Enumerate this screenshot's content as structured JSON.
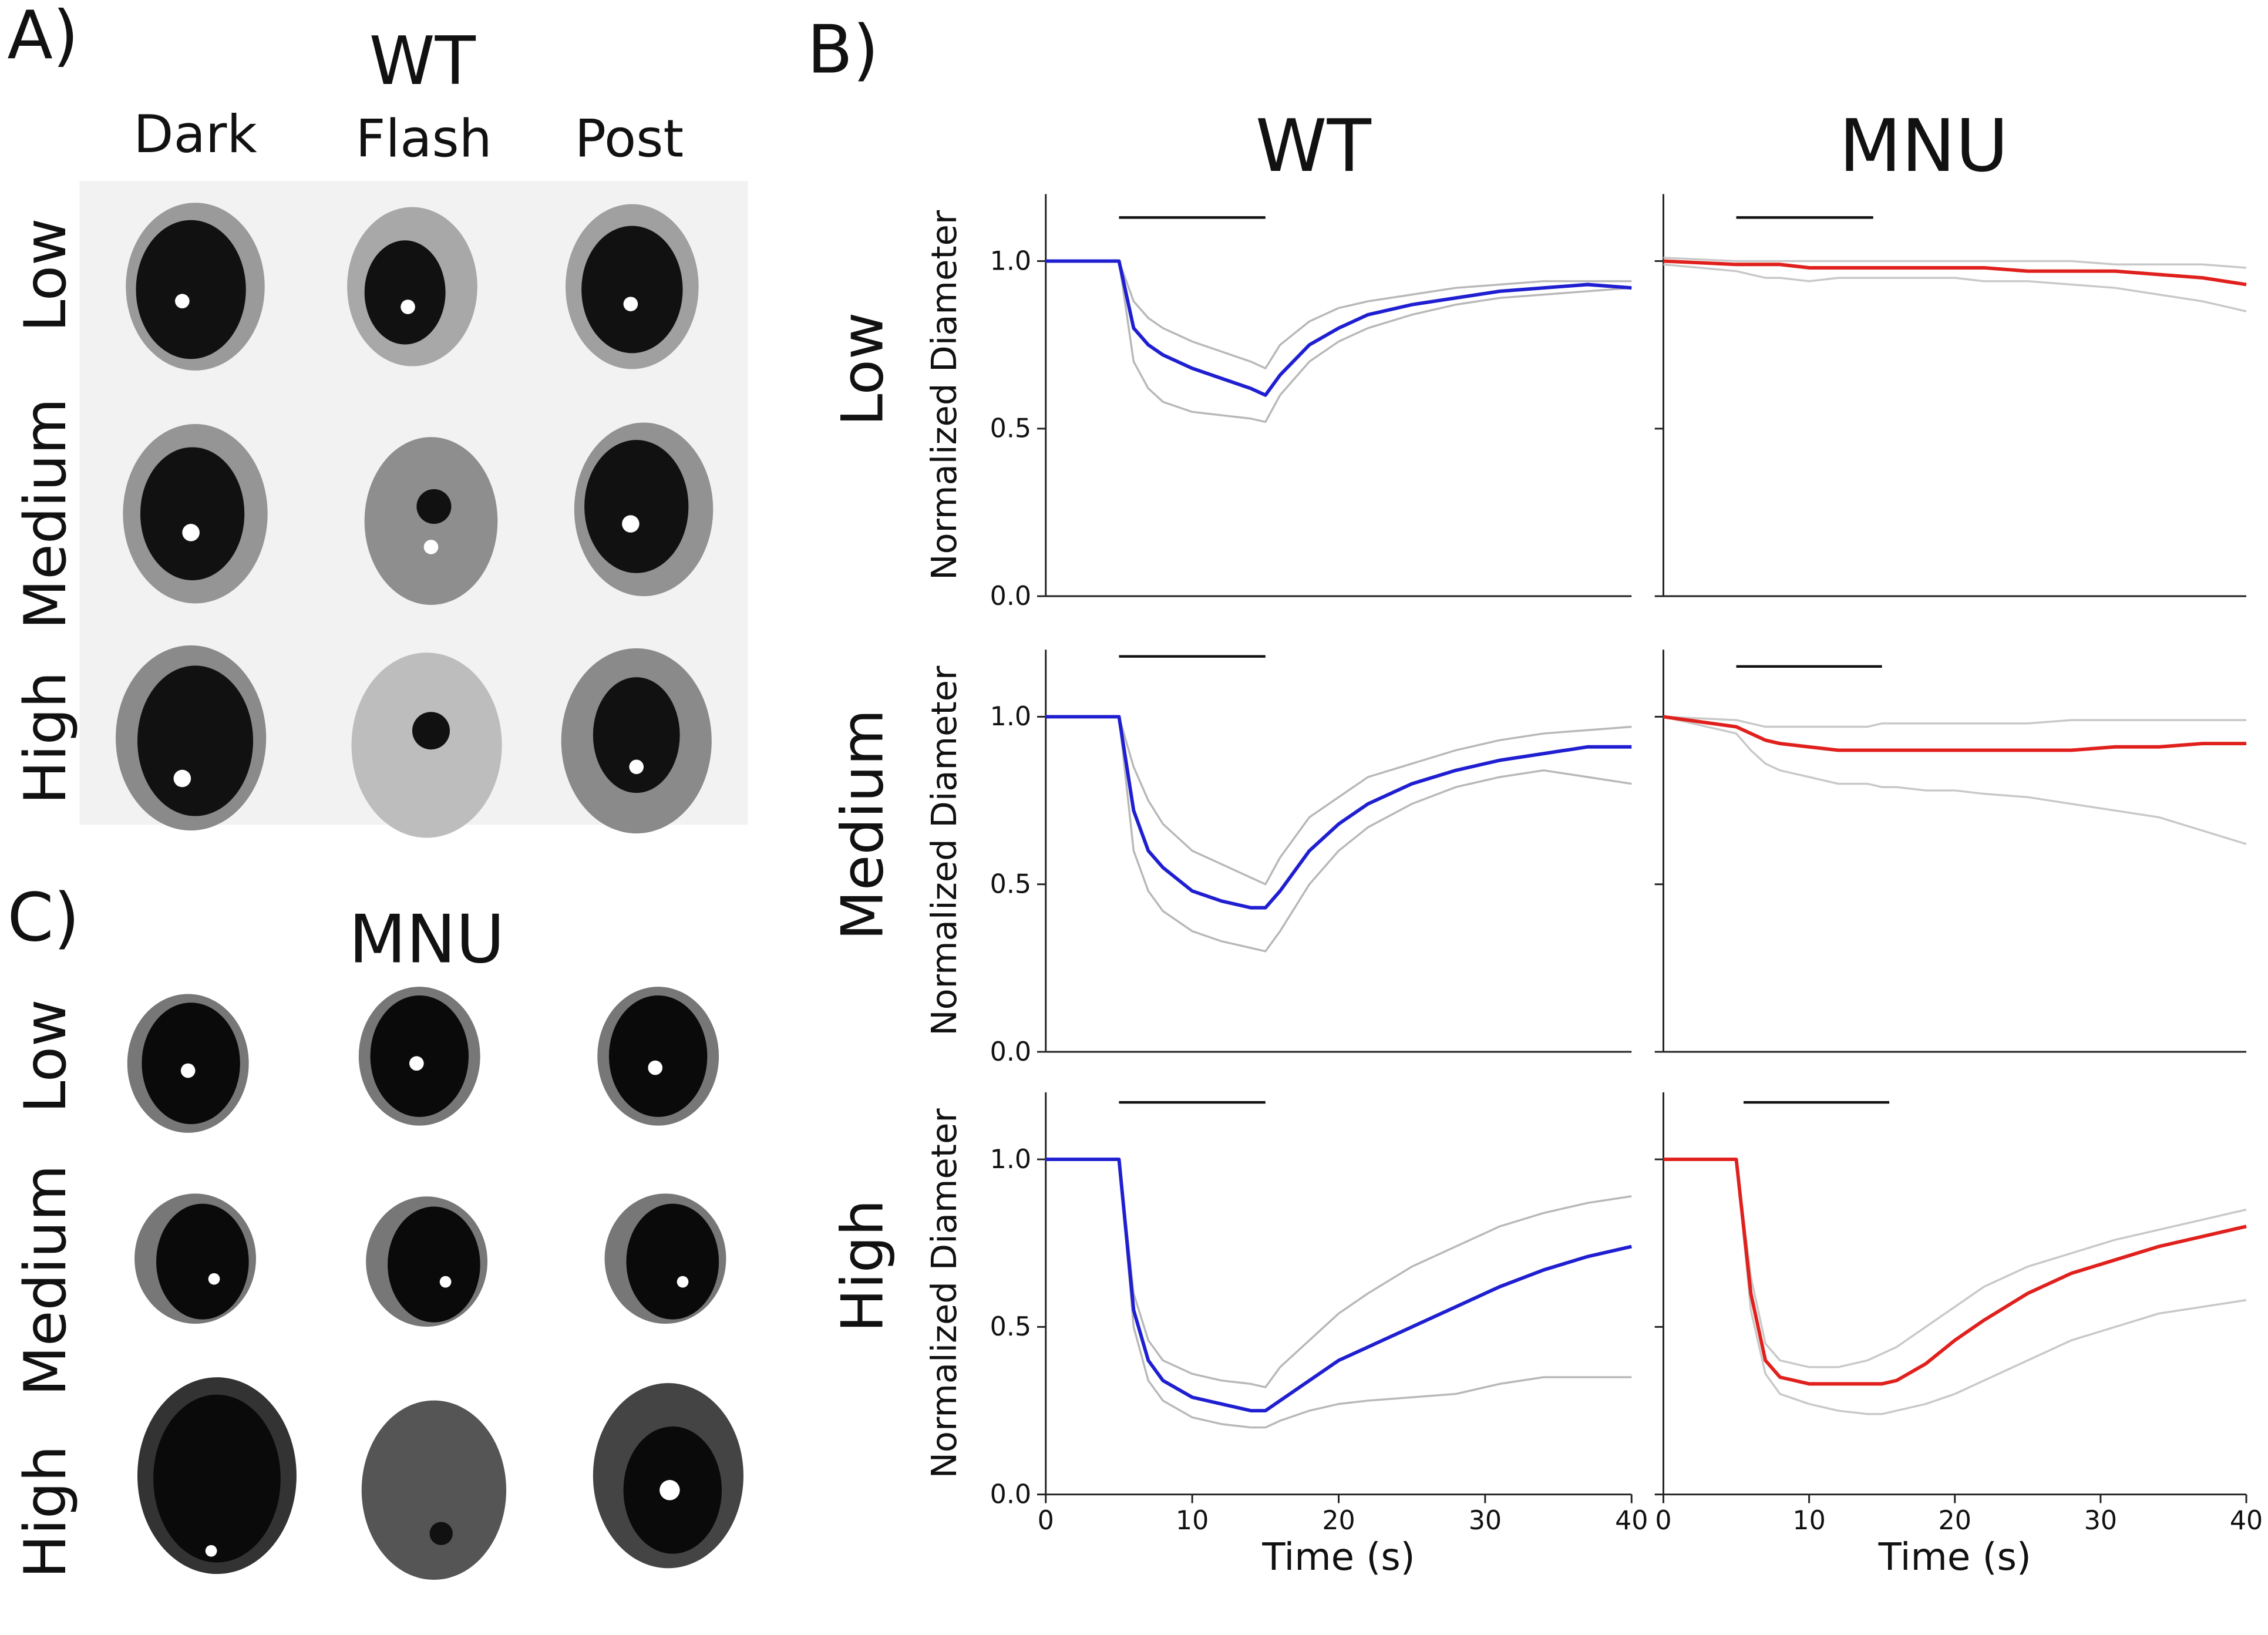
{
  "panel_a": {
    "label": "A)",
    "title": "WT",
    "columns": [
      "Dark",
      "Flash",
      "Post"
    ],
    "rows": [
      "Low",
      "Medium",
      "High"
    ]
  },
  "panel_c": {
    "label": "C)",
    "title": "MNU",
    "rows": [
      "Low",
      "Medium",
      "High"
    ]
  },
  "panel_b": {
    "label": "B)",
    "column_titles": [
      "WT",
      "MNU"
    ],
    "row_labels": [
      "Low",
      "Medium",
      "High"
    ]
  },
  "chart_data": [
    {
      "type": "line",
      "ylabel": "Normalized Diameter",
      "show_ytick_labels": true,
      "x": [
        0,
        5,
        6,
        7,
        8,
        10,
        12,
        14,
        15,
        16,
        18,
        20,
        22,
        25,
        28,
        31,
        34,
        37,
        40
      ],
      "xlim": [
        0,
        40
      ],
      "ylim": [
        0,
        1.2
      ],
      "yticks": [
        {
          "value": 0,
          "label": "0.0"
        },
        {
          "value": 0.5,
          "label": "0.5"
        },
        {
          "value": 1,
          "label": "1.0"
        }
      ],
      "stimulus": {
        "start": 5,
        "end": 15,
        "level": 1.13
      },
      "series": [
        {
          "color": "#b8b8b8",
          "values": [
            1.0,
            1.0,
            0.7,
            0.62,
            0.58,
            0.55,
            0.54,
            0.53,
            0.52,
            0.6,
            0.7,
            0.76,
            0.8,
            0.84,
            0.87,
            0.89,
            0.9,
            0.91,
            0.92
          ]
        },
        {
          "color": "#b8b8b8",
          "values": [
            1.0,
            1.0,
            0.88,
            0.83,
            0.8,
            0.76,
            0.73,
            0.7,
            0.68,
            0.75,
            0.82,
            0.86,
            0.88,
            0.9,
            0.92,
            0.93,
            0.94,
            0.94,
            0.94
          ]
        },
        {
          "color": "#1f1fd1",
          "values": [
            1.0,
            1.0,
            0.8,
            0.75,
            0.72,
            0.68,
            0.65,
            0.62,
            0.6,
            0.66,
            0.75,
            0.8,
            0.84,
            0.87,
            0.89,
            0.91,
            0.92,
            0.93,
            0.92
          ]
        }
      ]
    },
    {
      "type": "line",
      "show_ytick_labels": false,
      "x": [
        0,
        5,
        6,
        7,
        8,
        10,
        12,
        14,
        15,
        16,
        18,
        20,
        22,
        25,
        28,
        31,
        34,
        37,
        40
      ],
      "xlim": [
        0,
        40
      ],
      "ylim": [
        0,
        1.2
      ],
      "yticks": [
        0,
        0.5,
        1
      ],
      "stimulus": {
        "start": 5,
        "end": 14.4,
        "level": 1.13
      },
      "series": [
        {
          "color": "#c8c8c8",
          "values": [
            1.01,
            1.0,
            1.0,
            1.0,
            1.0,
            1.0,
            1.0,
            1.0,
            1.0,
            1.0,
            1.0,
            1.0,
            1.0,
            1.0,
            1.0,
            0.99,
            0.99,
            0.99,
            0.98
          ]
        },
        {
          "color": "#c8c8c8",
          "values": [
            0.99,
            0.97,
            0.96,
            0.95,
            0.95,
            0.94,
            0.95,
            0.95,
            0.95,
            0.95,
            0.95,
            0.95,
            0.94,
            0.94,
            0.93,
            0.92,
            0.9,
            0.88,
            0.85
          ]
        },
        {
          "color": "#e0201c",
          "values": [
            1.0,
            0.99,
            0.99,
            0.99,
            0.99,
            0.98,
            0.98,
            0.98,
            0.98,
            0.98,
            0.98,
            0.98,
            0.98,
            0.97,
            0.97,
            0.97,
            0.96,
            0.95,
            0.93
          ]
        }
      ]
    },
    {
      "type": "line",
      "ylabel": "Normalized Diameter",
      "show_ytick_labels": true,
      "x": [
        0,
        5,
        6,
        7,
        8,
        10,
        12,
        14,
        15,
        16,
        18,
        20,
        22,
        25,
        28,
        31,
        34,
        37,
        40
      ],
      "xlim": [
        0,
        40
      ],
      "ylim": [
        0,
        1.2
      ],
      "yticks": [
        {
          "value": 0,
          "label": "0.0"
        },
        {
          "value": 0.5,
          "label": "0.5"
        },
        {
          "value": 1,
          "label": "1.0"
        }
      ],
      "stimulus": {
        "start": 5,
        "end": 15,
        "level": 1.18
      },
      "series": [
        {
          "color": "#b8b8b8",
          "values": [
            1.0,
            1.0,
            0.6,
            0.48,
            0.42,
            0.36,
            0.33,
            0.31,
            0.3,
            0.36,
            0.5,
            0.6,
            0.67,
            0.74,
            0.79,
            0.82,
            0.84,
            0.82,
            0.8
          ]
        },
        {
          "color": "#b8b8b8",
          "values": [
            1.0,
            1.0,
            0.85,
            0.75,
            0.68,
            0.6,
            0.56,
            0.52,
            0.5,
            0.58,
            0.7,
            0.76,
            0.82,
            0.86,
            0.9,
            0.93,
            0.95,
            0.96,
            0.97
          ]
        },
        {
          "color": "#1f1fd1",
          "values": [
            1.0,
            1.0,
            0.72,
            0.6,
            0.55,
            0.48,
            0.45,
            0.43,
            0.43,
            0.48,
            0.6,
            0.68,
            0.74,
            0.8,
            0.84,
            0.87,
            0.89,
            0.91,
            0.91
          ]
        }
      ]
    },
    {
      "type": "line",
      "show_ytick_labels": false,
      "x": [
        0,
        5,
        6,
        7,
        8,
        10,
        12,
        14,
        15,
        16,
        18,
        20,
        22,
        25,
        28,
        31,
        34,
        37,
        40
      ],
      "xlim": [
        0,
        40
      ],
      "ylim": [
        0,
        1.2
      ],
      "yticks": [
        0,
        0.5,
        1
      ],
      "stimulus": {
        "start": 5,
        "end": 15,
        "level": 1.15
      },
      "series": [
        {
          "color": "#c8c8c8",
          "values": [
            1.0,
            0.99,
            0.98,
            0.97,
            0.97,
            0.97,
            0.97,
            0.97,
            0.98,
            0.98,
            0.98,
            0.98,
            0.98,
            0.98,
            0.99,
            0.99,
            0.99,
            0.99,
            0.99
          ]
        },
        {
          "color": "#c8c8c8",
          "values": [
            1.0,
            0.95,
            0.9,
            0.86,
            0.84,
            0.82,
            0.8,
            0.8,
            0.79,
            0.79,
            0.78,
            0.78,
            0.77,
            0.76,
            0.74,
            0.72,
            0.7,
            0.66,
            0.62
          ]
        },
        {
          "color": "#e0201c",
          "values": [
            1.0,
            0.97,
            0.95,
            0.93,
            0.92,
            0.91,
            0.9,
            0.9,
            0.9,
            0.9,
            0.9,
            0.9,
            0.9,
            0.9,
            0.9,
            0.91,
            0.91,
            0.92,
            0.92
          ]
        }
      ]
    },
    {
      "type": "line",
      "ylabel": "Normalized Diameter",
      "xlabel": "Time (s)",
      "show_ytick_labels": true,
      "x": [
        0,
        5,
        6,
        7,
        8,
        10,
        12,
        14,
        15,
        16,
        18,
        20,
        22,
        25,
        28,
        31,
        34,
        37,
        40
      ],
      "xlim": [
        0,
        40
      ],
      "xticks": [
        0,
        10,
        20,
        30,
        40
      ],
      "ylim": [
        0,
        1.2
      ],
      "yticks": [
        {
          "value": 0,
          "label": "0.0"
        },
        {
          "value": 0.5,
          "label": "0.5"
        },
        {
          "value": 1,
          "label": "1.0"
        }
      ],
      "stimulus": {
        "start": 5,
        "end": 15,
        "level": 1.17
      },
      "series": [
        {
          "color": "#b8b8b8",
          "values": [
            1.0,
            1.0,
            0.5,
            0.34,
            0.28,
            0.23,
            0.21,
            0.2,
            0.2,
            0.22,
            0.25,
            0.27,
            0.28,
            0.29,
            0.3,
            0.33,
            0.35,
            0.35,
            0.35
          ]
        },
        {
          "color": "#b8b8b8",
          "values": [
            1.0,
            1.0,
            0.6,
            0.46,
            0.4,
            0.36,
            0.34,
            0.33,
            0.32,
            0.38,
            0.46,
            0.54,
            0.6,
            0.68,
            0.74,
            0.8,
            0.84,
            0.87,
            0.89
          ]
        },
        {
          "color": "#1f1fd1",
          "values": [
            1.0,
            1.0,
            0.55,
            0.4,
            0.34,
            0.29,
            0.27,
            0.25,
            0.25,
            0.28,
            0.34,
            0.4,
            0.44,
            0.5,
            0.56,
            0.62,
            0.67,
            0.71,
            0.74
          ]
        }
      ]
    },
    {
      "type": "line",
      "xlabel": "Time (s)",
      "show_ytick_labels": false,
      "x": [
        0,
        5,
        6,
        7,
        8,
        10,
        12,
        14,
        15,
        16,
        18,
        20,
        22,
        25,
        28,
        31,
        34,
        37,
        40
      ],
      "xlim": [
        0,
        40
      ],
      "xticks": [
        0,
        10,
        20,
        30,
        40
      ],
      "ylim": [
        0,
        1.2
      ],
      "yticks": [
        0,
        0.5,
        1
      ],
      "stimulus": {
        "start": 5.5,
        "end": 15.5,
        "level": 1.17
      },
      "series": [
        {
          "color": "#c8c8c8",
          "values": [
            1.0,
            1.0,
            0.55,
            0.36,
            0.3,
            0.27,
            0.25,
            0.24,
            0.24,
            0.25,
            0.27,
            0.3,
            0.34,
            0.4,
            0.46,
            0.5,
            0.54,
            0.56,
            0.58
          ]
        },
        {
          "color": "#c8c8c8",
          "values": [
            1.0,
            1.0,
            0.65,
            0.45,
            0.4,
            0.38,
            0.38,
            0.4,
            0.42,
            0.44,
            0.5,
            0.56,
            0.62,
            0.68,
            0.72,
            0.76,
            0.79,
            0.82,
            0.85
          ]
        },
        {
          "color": "#e0201c",
          "values": [
            1.0,
            1.0,
            0.6,
            0.4,
            0.35,
            0.33,
            0.33,
            0.33,
            0.33,
            0.34,
            0.39,
            0.46,
            0.52,
            0.6,
            0.66,
            0.7,
            0.74,
            0.77,
            0.8
          ]
        }
      ]
    }
  ]
}
